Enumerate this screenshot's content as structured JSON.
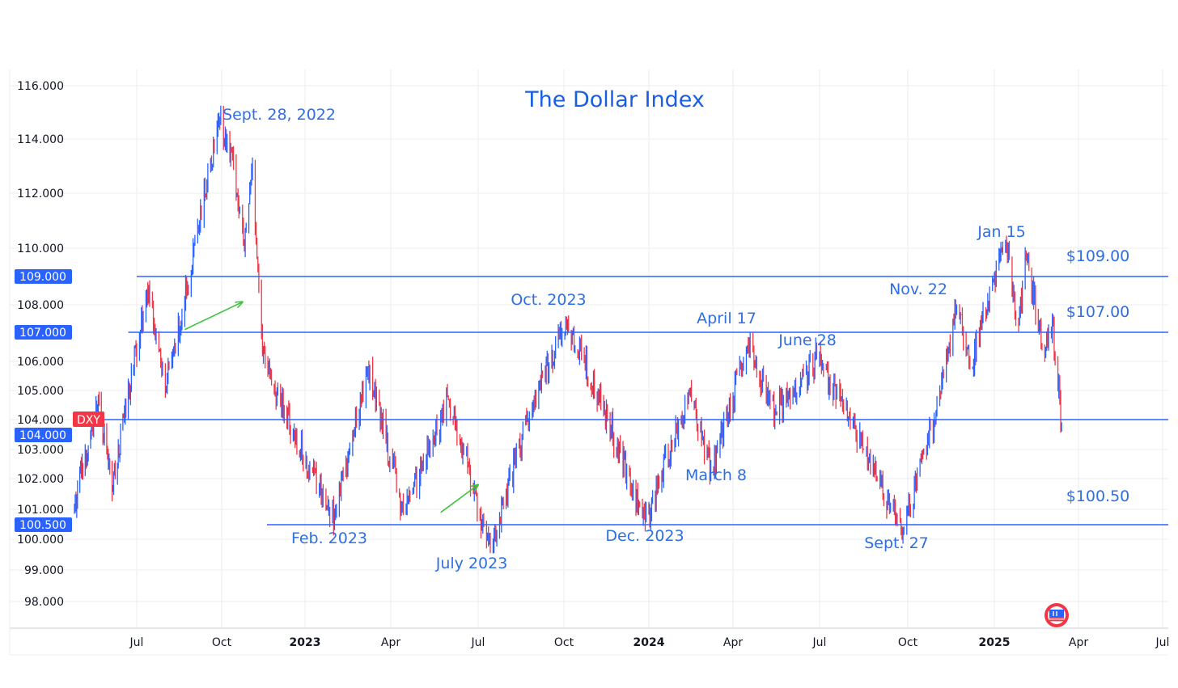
{
  "chart_data": {
    "type": "candlestick",
    "title": "The Dollar Index",
    "symbol": "DXY",
    "x_tick_labels": [
      {
        "label": "Jul",
        "date": "2022-07-01",
        "bold": false
      },
      {
        "label": "Oct",
        "date": "2022-10-01",
        "bold": false
      },
      {
        "label": "2023",
        "date": "2023-01-01",
        "bold": true
      },
      {
        "label": "Apr",
        "date": "2023-04-01",
        "bold": false
      },
      {
        "label": "Jul",
        "date": "2023-07-01",
        "bold": false
      },
      {
        "label": "Oct",
        "date": "2023-10-01",
        "bold": false
      },
      {
        "label": "2024",
        "date": "2024-01-01",
        "bold": true
      },
      {
        "label": "Apr",
        "date": "2024-04-01",
        "bold": false
      },
      {
        "label": "Jul",
        "date": "2024-07-01",
        "bold": false
      },
      {
        "label": "Oct",
        "date": "2024-10-01",
        "bold": false
      },
      {
        "label": "2025",
        "date": "2025-01-01",
        "bold": true
      },
      {
        "label": "Apr",
        "date": "2025-04-01",
        "bold": false
      },
      {
        "label": "Jul",
        "date": "2025-07-01",
        "bold": false
      }
    ],
    "y_ticks": [
      "98.000",
      "99.000",
      "100.000",
      "101.000",
      "102.000",
      "103.000",
      "104.000",
      "105.000",
      "106.000",
      "108.000",
      "110.000",
      "112.000",
      "114.000",
      "116.000"
    ],
    "y_range": [
      97.0,
      116.5
    ],
    "x_range": [
      "2022-04-11",
      "2025-07-10"
    ],
    "horizontal_levels": [
      {
        "value": 109.0,
        "tag": "109.000",
        "label": "$109.00",
        "start_date": "2022-07-01"
      },
      {
        "value": 107.0,
        "tag": "107.000",
        "label": "$107.00",
        "start_date": "2022-06-20"
      },
      {
        "value": 104.0,
        "tag": "104.000",
        "label": "",
        "start_date": "2022-04-11"
      },
      {
        "value": 100.5,
        "tag": "100.500",
        "label": "$100.50",
        "start_date": "2022-11-20"
      }
    ],
    "current_price": {
      "label": "DXY",
      "value": 104.0
    },
    "annotations": [
      {
        "text": "Sept. 28, 2022",
        "date": "2022-09-28",
        "value": 114.8
      },
      {
        "text": "Feb. 2023",
        "date": "2023-02-01",
        "value": 100.8
      },
      {
        "text": "July 2023",
        "date": "2023-07-14",
        "value": 99.6
      },
      {
        "text": "Oct. 2023",
        "date": "2023-10-03",
        "value": 107.4
      },
      {
        "text": "Dec. 2023",
        "date": "2023-12-28",
        "value": 100.6
      },
      {
        "text": "March 8",
        "date": "2024-03-08",
        "value": 102.3
      },
      {
        "text": "April 17",
        "date": "2024-04-17",
        "value": 106.5
      },
      {
        "text": "June 28",
        "date": "2024-06-28",
        "value": 106.1
      },
      {
        "text": "Sept. 27",
        "date": "2024-09-27",
        "value": 100.2
      },
      {
        "text": "Nov. 22",
        "date": "2024-11-22",
        "value": 108.0
      },
      {
        "text": "Jan 15",
        "date": "2025-01-13",
        "value": 110.2
      }
    ],
    "arrows": [
      {
        "from": [
          "2022-08-22",
          107.1
        ],
        "to": [
          "2022-10-24",
          108.1
        ]
      },
      {
        "from": [
          "2023-05-23",
          100.9
        ],
        "to": [
          "2023-07-01",
          101.8
        ]
      }
    ],
    "anchors": [
      [
        "2022-04-11",
        101.1
      ],
      [
        "2022-05-13",
        104.8
      ],
      [
        "2022-05-30",
        101.6
      ],
      [
        "2022-07-14",
        108.6
      ],
      [
        "2022-08-01",
        105.0
      ],
      [
        "2022-08-29",
        109.2
      ],
      [
        "2022-09-28",
        114.8
      ],
      [
        "2022-10-14",
        113.1
      ],
      [
        "2022-10-26",
        110.0
      ],
      [
        "2022-11-04",
        113.0
      ],
      [
        "2022-11-15",
        106.2
      ],
      [
        "2022-12-15",
        103.8
      ],
      [
        "2023-02-01",
        100.8
      ],
      [
        "2023-03-08",
        105.8
      ],
      [
        "2023-04-14",
        100.9
      ],
      [
        "2023-05-31",
        104.7
      ],
      [
        "2023-07-14",
        99.6
      ],
      [
        "2023-08-25",
        104.2
      ],
      [
        "2023-10-03",
        107.4
      ],
      [
        "2023-11-14",
        104.3
      ],
      [
        "2023-12-28",
        100.6
      ],
      [
        "2024-02-14",
        104.9
      ],
      [
        "2024-03-08",
        102.3
      ],
      [
        "2024-04-17",
        106.5
      ],
      [
        "2024-05-15",
        104.2
      ],
      [
        "2024-06-28",
        106.1
      ],
      [
        "2024-07-31",
        104.1
      ],
      [
        "2024-08-15",
        103.0
      ],
      [
        "2024-09-27",
        100.2
      ],
      [
        "2024-10-31",
        104.3
      ],
      [
        "2024-11-22",
        108.0
      ],
      [
        "2024-12-06",
        105.8
      ],
      [
        "2025-01-13",
        110.2
      ],
      [
        "2025-01-27",
        107.3
      ],
      [
        "2025-02-03",
        109.8
      ],
      [
        "2025-02-24",
        106.3
      ],
      [
        "2025-03-04",
        107.5
      ],
      [
        "2025-03-14",
        103.8
      ]
    ],
    "colors": {
      "level_line": "#2962ff",
      "candle_up": "#2962ff",
      "candle_down": "#f23645",
      "annotation": "#2f6fe4",
      "title": "#1a5fe0",
      "arrow": "#3fc43f",
      "dxy_tag": "#f23645",
      "grid": "#eeeeee"
    },
    "grid": true
  }
}
